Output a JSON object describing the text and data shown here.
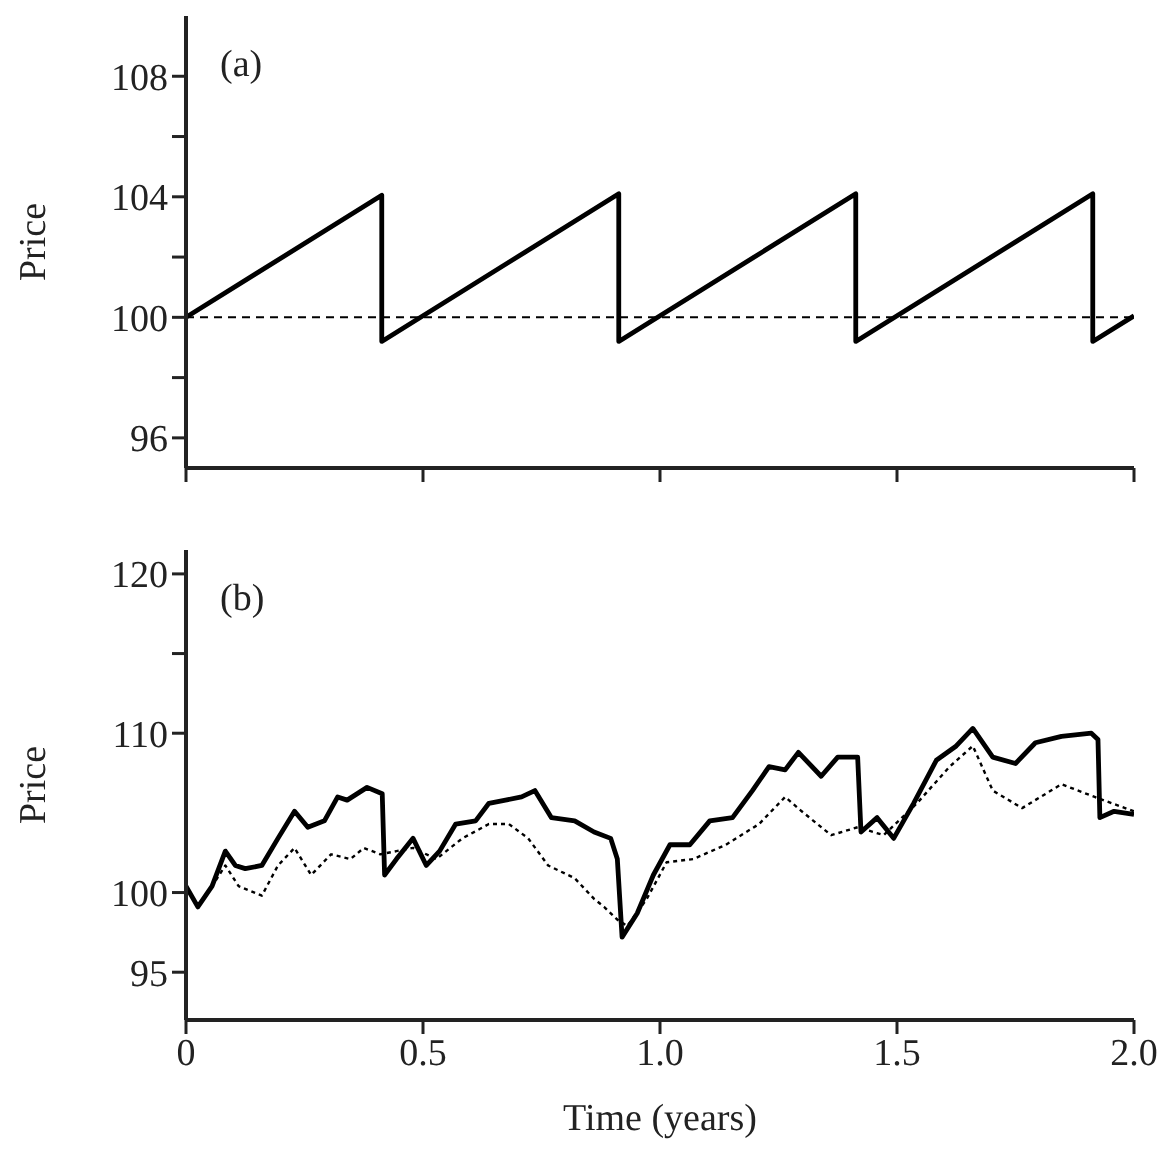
{
  "chart_data": [
    {
      "type": "line",
      "ylabel": "Price",
      "annotations": [
        "(a)"
      ],
      "xlim": [
        0,
        2
      ],
      "xticks": [
        {
          "value": 0,
          "label": null
        },
        {
          "value": 0.5,
          "label": null
        },
        {
          "value": 1,
          "label": null
        },
        {
          "value": 1.5,
          "label": null
        },
        {
          "value": 2,
          "label": null
        }
      ],
      "ylim": [
        95,
        110
      ],
      "yticks": [
        96,
        {
          "value": 98,
          "label": null
        },
        100,
        {
          "value": 102,
          "label": null
        },
        104,
        {
          "value": 106,
          "label": null
        },
        108
      ],
      "tick_labels": "y",
      "ref_lines": [
        {
          "axis": "y",
          "value": 100,
          "color": "#000000",
          "line_style": "dashed"
        }
      ],
      "series": [
        {
          "color": "#000000",
          "line_style": "solid",
          "x": [
            0,
            0.413,
            0.413,
            0.913,
            0.913,
            1.413,
            1.413,
            1.913,
            1.913,
            2.0
          ],
          "values": [
            100,
            104.05,
            99.2,
            104.1,
            99.2,
            104.1,
            99.2,
            104.1,
            99.2,
            100.05
          ]
        }
      ]
    },
    {
      "type": "line",
      "ylabel": "Price",
      "xlabel": "Time (years)",
      "annotations": [
        "(b)"
      ],
      "xlim": [
        0,
        2
      ],
      "xticks": [
        0,
        0.5,
        {
          "value": 1,
          "label": "1.0"
        },
        1.5,
        {
          "value": 2,
          "label": "2.0"
        }
      ],
      "ylim": [
        92,
        121.5
      ],
      "yticks": [
        95,
        100,
        110,
        {
          "value": 115,
          "label": null
        },
        120
      ],
      "series": [
        {
          "color": "#000000",
          "line_style": "solid",
          "x": [
            0,
            0.025,
            0.055,
            0.083,
            0.104,
            0.125,
            0.16,
            0.194,
            0.229,
            0.257,
            0.292,
            0.32,
            0.34,
            0.382,
            0.414,
            0.419,
            0.444,
            0.479,
            0.507,
            0.535,
            0.569,
            0.611,
            0.639,
            0.674,
            0.708,
            0.736,
            0.771,
            0.82,
            0.861,
            0.896,
            0.91,
            0.92,
            0.952,
            0.986,
            1.021,
            1.063,
            1.105,
            1.153,
            1.195,
            1.23,
            1.264,
            1.292,
            1.34,
            1.375,
            1.417,
            1.424,
            1.458,
            1.493,
            1.535,
            1.583,
            1.625,
            1.66,
            1.702,
            1.75,
            1.792,
            1.847,
            1.91,
            1.924,
            1.928,
            1.958,
            2.0
          ],
          "values": [
            100.4,
            99.1,
            100.4,
            102.6,
            101.7,
            101.5,
            101.7,
            103.4,
            105.1,
            104.1,
            104.5,
            106.0,
            105.8,
            106.6,
            106.2,
            101.1,
            102.1,
            103.4,
            101.7,
            102.6,
            104.3,
            104.5,
            105.6,
            105.8,
            106.0,
            106.4,
            104.7,
            104.5,
            103.8,
            103.4,
            102.1,
            97.2,
            98.7,
            101.1,
            103.0,
            103.0,
            104.5,
            104.7,
            106.4,
            107.9,
            107.7,
            108.8,
            107.3,
            108.5,
            108.5,
            103.8,
            104.7,
            103.4,
            105.6,
            108.3,
            109.2,
            110.3,
            108.5,
            108.1,
            109.4,
            109.8,
            110.0,
            109.6,
            104.7,
            105.1,
            104.9
          ]
        },
        {
          "color": "#000000",
          "line_style": "dotted",
          "x": [
            0,
            0.025,
            0.055,
            0.083,
            0.111,
            0.16,
            0.194,
            0.229,
            0.264,
            0.306,
            0.347,
            0.375,
            0.41,
            0.444,
            0.479,
            0.528,
            0.583,
            0.639,
            0.681,
            0.722,
            0.764,
            0.82,
            0.861,
            0.882,
            0.91,
            0.931,
            0.972,
            1.014,
            1.07,
            1.139,
            1.209,
            1.264,
            1.299,
            1.361,
            1.417,
            1.472,
            1.542,
            1.611,
            1.66,
            1.702,
            1.764,
            1.847,
            1.917,
            2.0
          ],
          "values": [
            100.4,
            99.1,
            100.4,
            101.7,
            100.4,
            99.8,
            101.7,
            102.8,
            101.1,
            102.4,
            102.1,
            102.8,
            102.4,
            102.6,
            102.8,
            102.1,
            103.4,
            104.3,
            104.3,
            103.4,
            101.7,
            100.9,
            99.6,
            99.1,
            98.3,
            97.9,
            99.6,
            101.9,
            102.1,
            103.0,
            104.3,
            106.0,
            105.1,
            103.6,
            104.1,
            103.6,
            105.6,
            107.9,
            109.2,
            106.4,
            105.3,
            106.8,
            106.0,
            105.1
          ]
        }
      ]
    }
  ]
}
